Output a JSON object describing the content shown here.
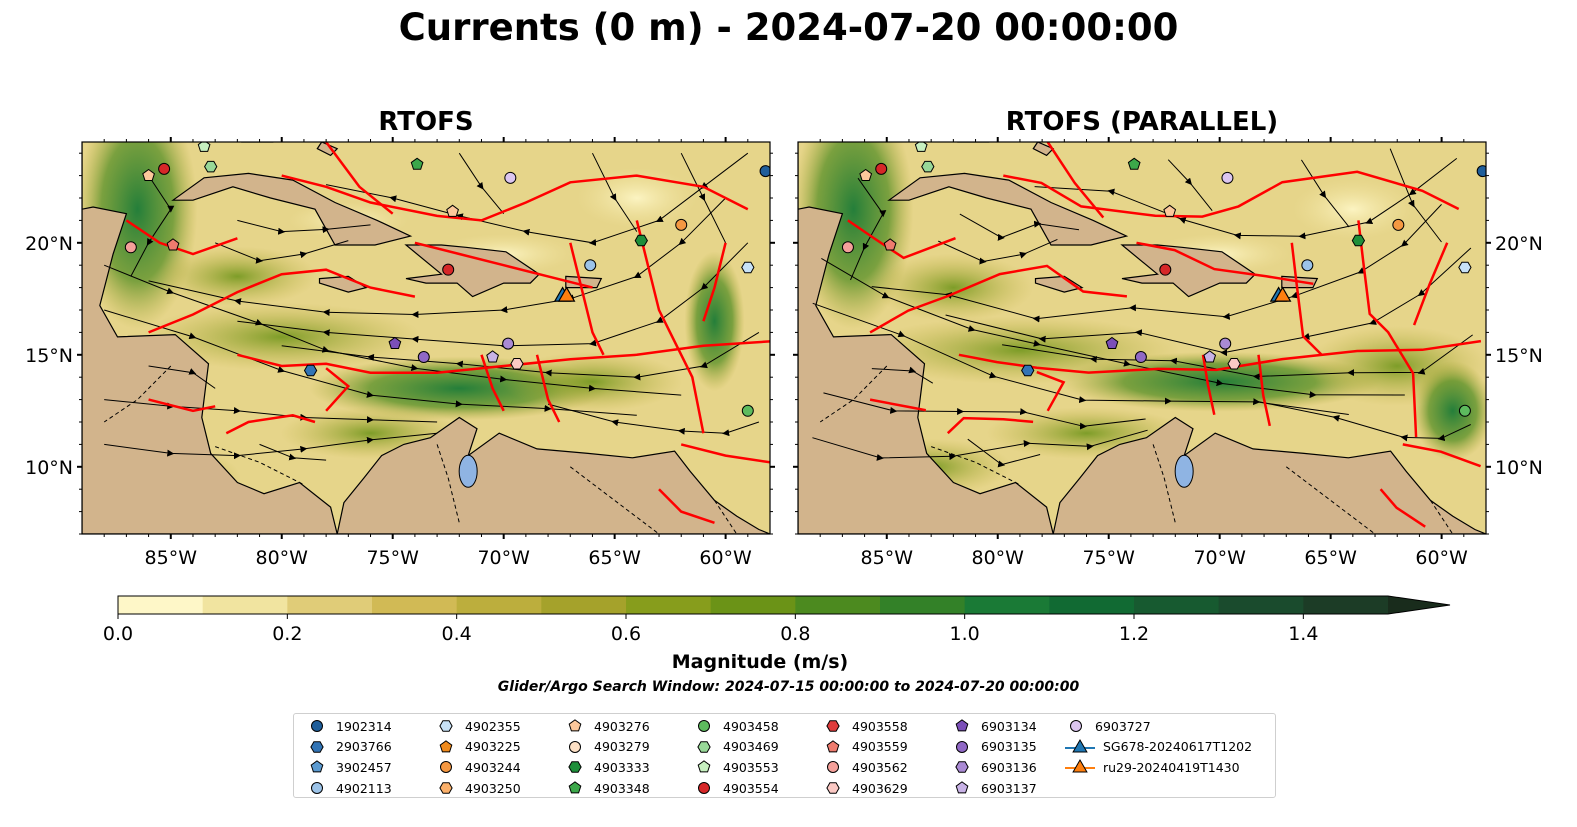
{
  "title": "Currents (0 m) - 2024-07-20 00:00:00",
  "panels": [
    {
      "title": "RTOFS"
    },
    {
      "title": "RTOFS (PARALLEL)"
    }
  ],
  "map": {
    "lon_range": [
      -89,
      -58
    ],
    "lat_range": [
      7,
      24.5
    ],
    "lon_ticks": [
      -85,
      -80,
      -75,
      -70,
      -65,
      -60
    ],
    "lat_ticks": [
      10,
      15,
      20
    ],
    "lon_tick_labels": [
      "85°W",
      "80°W",
      "75°W",
      "70°W",
      "65°W",
      "60°W"
    ],
    "lat_tick_labels": [
      "10°N",
      "15°N",
      "20°N"
    ],
    "colors": {
      "land": "#d2b48c",
      "water_body": "#8fb4e3",
      "eez": "#ff0000",
      "streamline": "#000000"
    }
  },
  "colorbar": {
    "label": "Magnitude (m/s)",
    "min": 0.0,
    "max": 1.5,
    "extend": "max",
    "ticks": [
      0.0,
      0.2,
      0.4,
      0.6,
      0.8,
      1.0,
      1.2,
      1.4
    ],
    "tick_labels": [
      "0.0",
      "0.2",
      "0.4",
      "0.6",
      "0.8",
      "1.0",
      "1.2",
      "1.4"
    ],
    "colors": [
      "#fef7c8",
      "#f1e4a0",
      "#e0cc78",
      "#d1ba55",
      "#bcae3d",
      "#a5a22b",
      "#879d1c",
      "#6b9317",
      "#4c8a1f",
      "#338128",
      "#1a7a36",
      "#116a33",
      "#175a30",
      "#1a4b2d",
      "#1c3c26",
      "#192c1c"
    ]
  },
  "search_window": "Glider/Argo Search Window: 2024-07-15 00:00:00 to 2024-07-20 00:00:00",
  "legend": [
    [
      {
        "label": "1902314",
        "marker": "circle",
        "color": "#1f5e9a"
      },
      {
        "label": "2903766",
        "marker": "hexagon",
        "color": "#3274b5"
      },
      {
        "label": "3902457",
        "marker": "pentagon",
        "color": "#5b9ad0"
      },
      {
        "label": "4902113",
        "marker": "circle",
        "color": "#9cc3e8"
      }
    ],
    [
      {
        "label": "4902355",
        "marker": "hexagon",
        "color": "#c8e2f7"
      },
      {
        "label": "4903225",
        "marker": "pentagon",
        "color": "#f08a1c"
      },
      {
        "label": "4903244",
        "marker": "circle",
        "color": "#f59842"
      },
      {
        "label": "4903250",
        "marker": "hexagon",
        "color": "#fbb06a"
      }
    ],
    [
      {
        "label": "4903276",
        "marker": "pentagon",
        "color": "#fcc89b"
      },
      {
        "label": "4903279",
        "marker": "circle",
        "color": "#fde0c5"
      },
      {
        "label": "4903333",
        "marker": "hexagon",
        "color": "#1e8f3a"
      },
      {
        "label": "4903348",
        "marker": "pentagon",
        "color": "#3ca84a"
      }
    ],
    [
      {
        "label": "4903458",
        "marker": "circle",
        "color": "#5dbb5e"
      },
      {
        "label": "4903469",
        "marker": "hexagon",
        "color": "#98d898"
      },
      {
        "label": "4903553",
        "marker": "pentagon",
        "color": "#c7f0c0"
      },
      {
        "label": "4903554",
        "marker": "circle",
        "color": "#d62728"
      }
    ],
    [
      {
        "label": "4903558",
        "marker": "hexagon",
        "color": "#de3c3c"
      },
      {
        "label": "4903559",
        "marker": "pentagon",
        "color": "#ee7b6e"
      },
      {
        "label": "4903562",
        "marker": "circle",
        "color": "#f4a09a"
      },
      {
        "label": "4903629",
        "marker": "hexagon",
        "color": "#fbc9c4"
      }
    ],
    [
      {
        "label": "6903134",
        "marker": "pentagon",
        "color": "#7b4fb8"
      },
      {
        "label": "6903135",
        "marker": "circle",
        "color": "#9068c5"
      },
      {
        "label": "6903136",
        "marker": "hexagon",
        "color": "#aa8ad4"
      },
      {
        "label": "6903137",
        "marker": "pentagon",
        "color": "#c8b2e6"
      }
    ],
    [
      {
        "label": "6903727",
        "marker": "circle",
        "color": "#dcc6f0"
      },
      {
        "label": "SG678-20240617T1202",
        "marker": "triangle-line",
        "color": "#1f77b4"
      },
      {
        "label": "ru29-20240419T1430",
        "marker": "triangle-line",
        "color": "#ff7f0e"
      }
    ]
  ]
}
